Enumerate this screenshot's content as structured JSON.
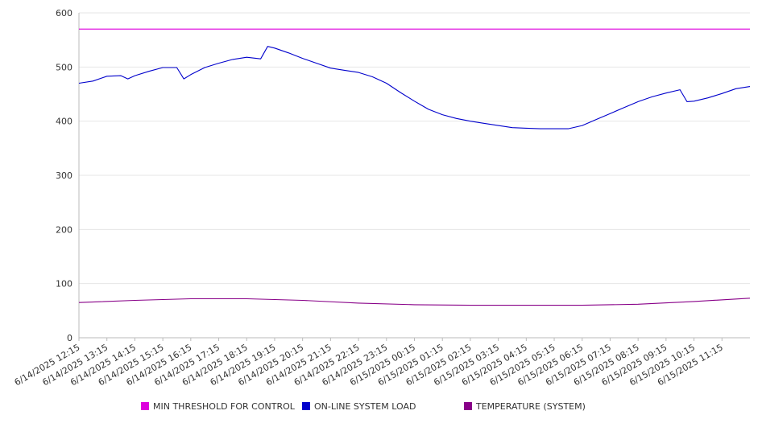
{
  "chart_data": {
    "type": "line",
    "title": "",
    "xlabel": "",
    "ylabel": "",
    "ylim": [
      0,
      600
    ],
    "yticks": [
      0,
      100,
      200,
      300,
      400,
      500,
      600
    ],
    "grid": "horizontal",
    "legend_position": "bottom",
    "x_start": "6/14/2025 12:15",
    "x_end": "6/15/2025 12:15",
    "xtick_labels": [
      "6/14/2025 12:15",
      "6/14/2025 13:15",
      "6/14/2025 14:15",
      "6/14/2025 15:15",
      "6/14/2025 16:15",
      "6/14/2025 17:15",
      "6/14/2025 18:15",
      "6/14/2025 19:15",
      "6/14/2025 20:15",
      "6/14/2025 21:15",
      "6/14/2025 22:15",
      "6/14/2025 23:15",
      "6/15/2025 00:15",
      "6/15/2025 01:15",
      "6/15/2025 02:15",
      "6/15/2025 03:15",
      "6/15/2025 04:15",
      "6/15/2025 05:15",
      "6/15/2025 06:15",
      "6/15/2025 07:15",
      "6/15/2025 08:15",
      "6/15/2025 09:15",
      "6/15/2025 10:15",
      "6/15/2025 11:15"
    ],
    "series": [
      {
        "name": "MIN THRESHOLD FOR CONTROL",
        "color": "#dd00dd",
        "x": [
          "6/14/2025 12:15",
          "6/15/2025 12:15"
        ],
        "values": [
          570,
          570
        ]
      },
      {
        "name": "ON-LINE SYSTEM LOAD",
        "color": "#0000cc",
        "x": [
          "6/14/2025 12:15",
          "6/14/2025 12:45",
          "6/14/2025 13:15",
          "6/14/2025 13:45",
          "6/14/2025 14:00",
          "6/14/2025 14:15",
          "6/14/2025 14:45",
          "6/14/2025 15:15",
          "6/14/2025 15:45",
          "6/14/2025 16:00",
          "6/14/2025 16:15",
          "6/14/2025 16:45",
          "6/14/2025 17:15",
          "6/14/2025 17:45",
          "6/14/2025 18:15",
          "6/14/2025 18:45",
          "6/14/2025 19:00",
          "6/14/2025 19:15",
          "6/14/2025 19:45",
          "6/14/2025 20:15",
          "6/14/2025 20:45",
          "6/14/2025 21:15",
          "6/14/2025 21:45",
          "6/14/2025 22:15",
          "6/14/2025 22:45",
          "6/14/2025 23:15",
          "6/14/2025 23:45",
          "6/15/2025 00:15",
          "6/15/2025 00:45",
          "6/15/2025 01:15",
          "6/15/2025 01:45",
          "6/15/2025 02:15",
          "6/15/2025 02:45",
          "6/15/2025 03:15",
          "6/15/2025 03:45",
          "6/15/2025 04:15",
          "6/15/2025 04:45",
          "6/15/2025 05:15",
          "6/15/2025 05:45",
          "6/15/2025 06:15",
          "6/15/2025 06:45",
          "6/15/2025 07:15",
          "6/15/2025 07:45",
          "6/15/2025 08:15",
          "6/15/2025 08:45",
          "6/15/2025 09:15",
          "6/15/2025 09:45",
          "6/15/2025 10:00",
          "6/15/2025 10:15",
          "6/15/2025 10:45",
          "6/15/2025 11:15",
          "6/15/2025 11:45",
          "6/15/2025 12:15"
        ],
        "values": [
          470,
          474,
          483,
          484,
          478,
          484,
          492,
          499,
          499,
          478,
          486,
          499,
          507,
          514,
          518,
          515,
          538,
          535,
          526,
          516,
          507,
          498,
          494,
          490,
          482,
          470,
          453,
          437,
          422,
          412,
          405,
          400,
          396,
          392,
          388,
          387,
          386,
          386,
          386,
          392,
          403,
          414,
          425,
          436,
          445,
          452,
          458,
          436,
          437,
          443,
          451,
          460,
          464
        ]
      },
      {
        "name": "TEMPERATURE (SYSTEM)",
        "color": "#880088",
        "x": [
          "6/14/2025 12:15",
          "6/14/2025 14:15",
          "6/14/2025 16:15",
          "6/14/2025 18:15",
          "6/14/2025 20:15",
          "6/14/2025 22:15",
          "6/15/2025 00:15",
          "6/15/2025 02:15",
          "6/15/2025 04:15",
          "6/15/2025 06:15",
          "6/15/2025 08:15",
          "6/15/2025 10:15",
          "6/15/2025 12:15"
        ],
        "values": [
          65,
          69,
          72,
          72,
          69,
          64,
          61,
          60,
          60,
          60,
          62,
          67,
          73
        ]
      }
    ]
  }
}
